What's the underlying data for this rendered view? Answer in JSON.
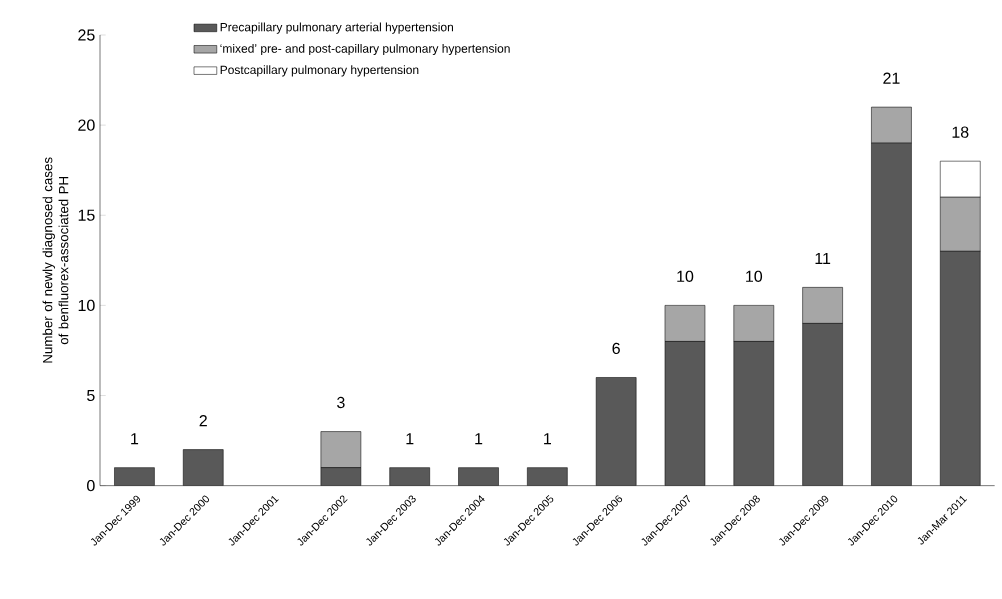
{
  "chart_data": {
    "type": "bar",
    "stacked": true,
    "ylabel": "Number of newly diagnosed cases of benfluorex-associated PH",
    "categories": [
      "Jan-Dec 1999",
      "Jan-Dec 2000",
      "Jan-Dec 2001",
      "Jan-Dec 2002",
      "Jan-Dec 2003",
      "Jan-Dec 2004",
      "Jan-Dec 2005",
      "Jan-Dec 2006",
      "Jan-Dec 2007",
      "Jan-Dec 2008",
      "Jan-Dec 2009",
      "Jan-Dec 2010",
      "Jan-Mar 2011"
    ],
    "series": [
      {
        "name": "Precapillary pulmonary arterial hypertension",
        "color": "#595959",
        "values": [
          1,
          2,
          0,
          1,
          1,
          1,
          1,
          6,
          8,
          8,
          9,
          19,
          13
        ]
      },
      {
        "name": "‘mixed’ pre- and post-capillary pulmonary hypertension",
        "color": "#a6a6a6",
        "values": [
          0,
          0,
          0,
          2,
          0,
          0,
          0,
          0,
          2,
          2,
          2,
          2,
          3
        ]
      },
      {
        "name": "Postcapillary pulmonary hypertension",
        "color": "#ffffff",
        "values": [
          0,
          0,
          0,
          0,
          0,
          0,
          0,
          0,
          0,
          0,
          0,
          0,
          2
        ]
      }
    ],
    "totals": [
      "1",
      "2",
      null,
      "3",
      "1",
      "1",
      "1",
      "6",
      "10",
      "10",
      "11",
      "21",
      "18"
    ],
    "ylim": [
      0,
      25
    ],
    "yticks": [
      0,
      5,
      10,
      15,
      20,
      25
    ],
    "legend": "top left"
  }
}
